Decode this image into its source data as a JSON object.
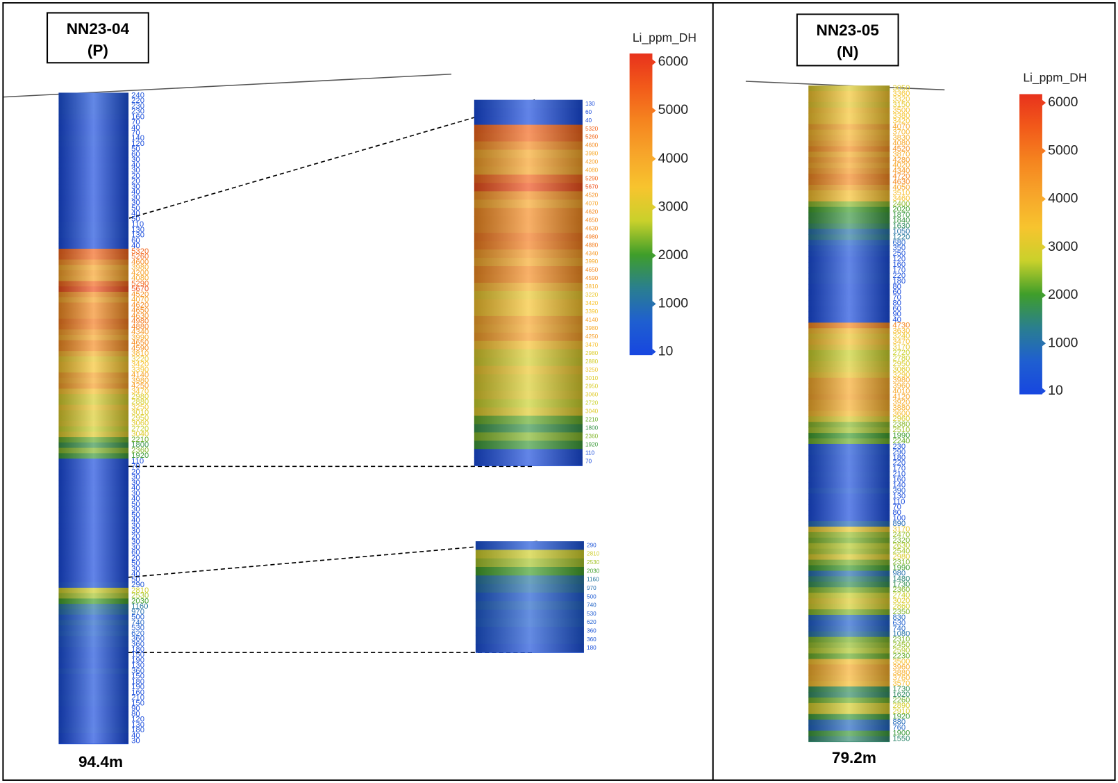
{
  "colorbar": {
    "lim": [
      -60,
      6180
    ],
    "colors": [
      "#e8321c",
      "#f25a1a",
      "#f5841f",
      "#f7a52a",
      "#f7c42e",
      "#c9d12b",
      "#3f9e2a",
      "#2a7f8f",
      "#1f5fd0",
      "#1746e0"
    ]
  },
  "panels": [
    {
      "title": "NN23-04",
      "subtitle": "(P)",
      "depth": "94.4m",
      "legend": {
        "title": "Li_ppm_DH",
        "ticks": [
          6000,
          5000,
          4000,
          3000,
          2000,
          1000,
          10
        ]
      },
      "hole_values": [
        240,
        220,
        230,
        230,
        160,
        70,
        40,
        70,
        140,
        120,
        50,
        60,
        30,
        40,
        30,
        20,
        20,
        30,
        40,
        30,
        30,
        50,
        40,
        50,
        110,
        130,
        130,
        60,
        40,
        5320,
        5260,
        4600,
        3980,
        4200,
        4080,
        5290,
        5670,
        4520,
        4070,
        4620,
        4650,
        4630,
        4980,
        4880,
        4340,
        3990,
        4650,
        4590,
        3810,
        3220,
        3420,
        3390,
        4140,
        3980,
        4250,
        3470,
        2980,
        2880,
        3250,
        3010,
        2950,
        3060,
        2720,
        3040,
        2210,
        1800,
        2360,
        1920,
        110,
        70,
        20,
        30,
        30,
        40,
        30,
        40,
        50,
        30,
        50,
        40,
        30,
        30,
        20,
        30,
        30,
        60,
        20,
        50,
        30,
        40,
        50,
        290,
        2810,
        2530,
        2030,
        1160,
        970,
        500,
        740,
        530,
        620,
        360,
        360,
        180,
        150,
        190,
        130,
        360,
        150,
        180,
        190,
        160,
        210,
        150,
        90,
        80,
        120,
        130,
        180,
        40,
        30
      ],
      "zooms": [
        [
          130,
          60,
          40,
          5320,
          5260,
          4600,
          3980,
          4200,
          4080,
          5290,
          5670,
          4520,
          4070,
          4620,
          4650,
          4630,
          4980,
          4880,
          4340,
          3990,
          4650,
          4590,
          3810,
          3220,
          3420,
          3390,
          4140,
          3980,
          4250,
          3470,
          2980,
          2880,
          3250,
          3010,
          2950,
          3060,
          2720,
          3040,
          2210,
          1800,
          2360,
          1920,
          110,
          70
        ],
        [
          290,
          2810,
          2530,
          2030,
          1160,
          970,
          500,
          740,
          530,
          620,
          360,
          360,
          180
        ]
      ]
    },
    {
      "title": "NN23-05",
      "subtitle": "(N)",
      "depth": "79.2m",
      "legend": {
        "title": "Li_ppm_DH",
        "ticks": [
          6000,
          5000,
          4000,
          3000,
          2000,
          1000,
          10
        ]
      },
      "hole_values": [
        3050,
        3360,
        3320,
        3150,
        3500,
        3380,
        3420,
        4070,
        3700,
        3830,
        4080,
        4520,
        3870,
        4280,
        4020,
        4340,
        4720,
        4630,
        4050,
        3510,
        3460,
        2400,
        2020,
        1870,
        1840,
        1630,
        1050,
        1220,
        680,
        350,
        250,
        120,
        160,
        170,
        220,
        180,
        80,
        60,
        70,
        80,
        60,
        90,
        40,
        4730,
        3630,
        3240,
        3470,
        3170,
        2720,
        2780,
        2950,
        3060,
        3290,
        3980,
        3960,
        4010,
        4120,
        3920,
        3880,
        3600,
        2960,
        2380,
        2510,
        1990,
        2240,
        230,
        290,
        180,
        220,
        170,
        210,
        160,
        140,
        390,
        130,
        110,
        70,
        80,
        100,
        890,
        3170,
        2470,
        2320,
        2630,
        2540,
        2980,
        2310,
        1990,
        980,
        1480,
        1730,
        2360,
        2740,
        3020,
        2860,
        2350,
        830,
        630,
        740,
        1080,
        2310,
        2450,
        2590,
        2230,
        3500,
        3960,
        3880,
        3760,
        3570,
        1730,
        1620,
        2260,
        2890,
        2910,
        1920,
        880,
        760,
        1900,
        1550
      ],
      "zooms": []
    }
  ]
}
